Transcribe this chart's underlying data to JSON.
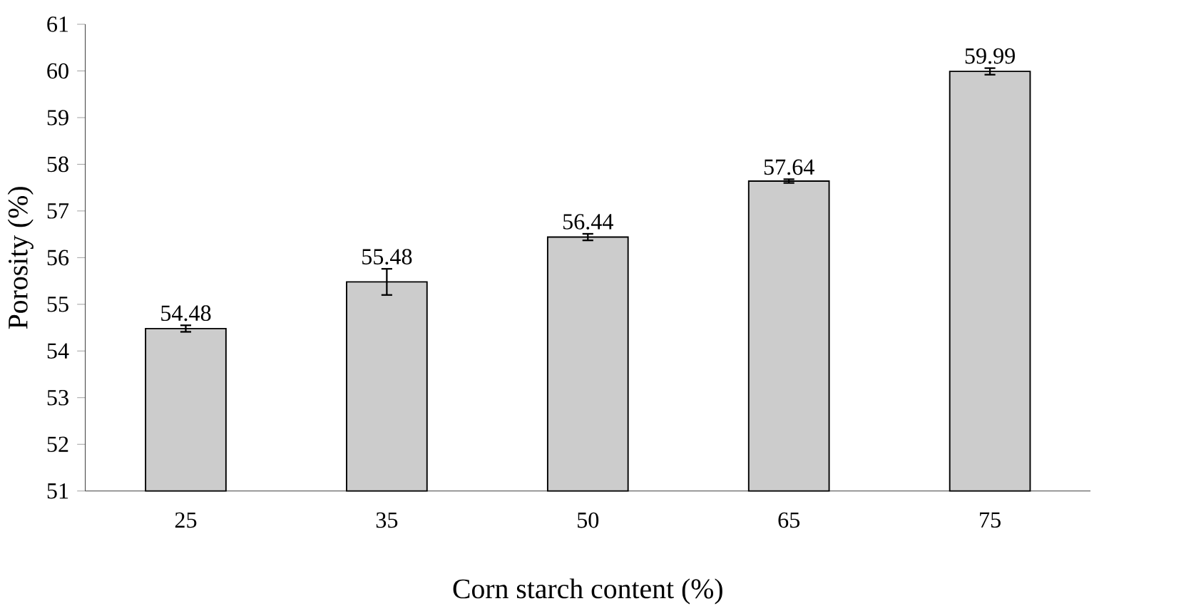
{
  "chart_data": {
    "type": "bar",
    "xlabel": "Corn starch content (%)",
    "ylabel": "Porosity (%)",
    "categories": [
      "25",
      "35",
      "50",
      "65",
      "75"
    ],
    "values": [
      54.48,
      55.48,
      56.44,
      57.64,
      59.99
    ],
    "errors": [
      0.07,
      0.28,
      0.07,
      0.04,
      0.07
    ],
    "color": "#cccccc",
    "ylim": [
      51,
      61
    ],
    "yticks": [
      51,
      52,
      53,
      54,
      55,
      56,
      57,
      58,
      59,
      60,
      61
    ],
    "data_labels": true
  }
}
